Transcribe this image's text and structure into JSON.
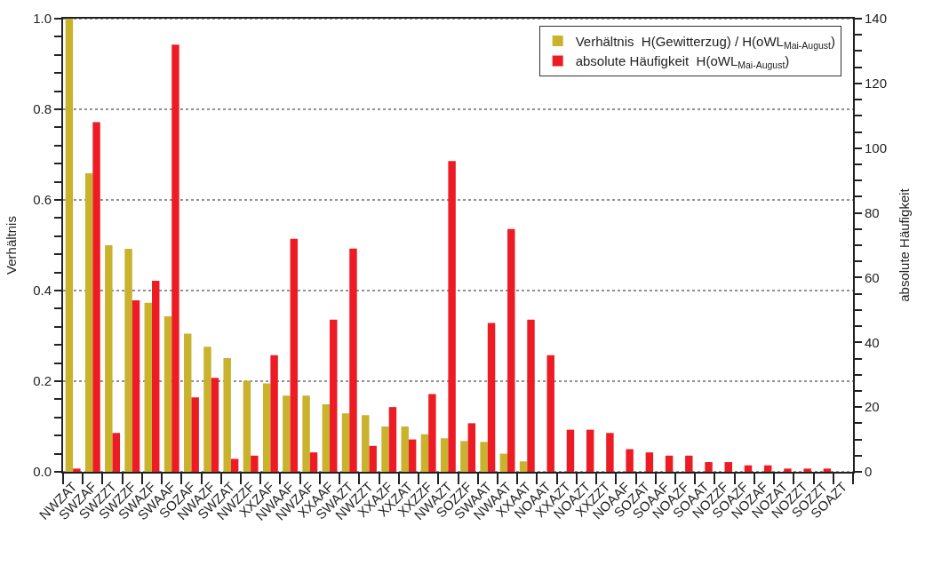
{
  "chart_data": {
    "type": "bar",
    "ylabel": "Verhältnis",
    "y2label": "absolute Häufigkeit",
    "categories": [
      "NWZAT",
      "SWZAF",
      "SWZZT",
      "SWZZF",
      "SWAZF",
      "SWAAF",
      "SOZAF",
      "NWAZF",
      "SWZAT",
      "NWZZF",
      "XXZAF",
      "NWAAF",
      "NWZAF",
      "XXAAF",
      "SWAZT",
      "NWZZT",
      "XXAZF",
      "XXZAT",
      "XXZZF",
      "NWAZT",
      "SOZZF",
      "SWAAT",
      "NWAAT",
      "XXAAT",
      "NOAAT",
      "XXAZT",
      "NOAZT",
      "XXZZT",
      "NOAAF",
      "SOZAT",
      "SOAAF",
      "NOAZF",
      "SOAAT",
      "NOZZF",
      "SOAZF",
      "NOZAF",
      "NOZAT",
      "NOZZT",
      "SOZZT",
      "SOAZT"
    ],
    "series": [
      {
        "name": "Verhältnis  H(Gewitterzug) / H(oWL$_{Mai-August}$)",
        "color": "#c8b22e",
        "values": [
          1.0,
          0.659,
          0.5,
          0.492,
          0.373,
          0.343,
          0.305,
          0.276,
          0.251,
          0.201,
          0.195,
          0.168,
          0.168,
          0.149,
          0.129,
          0.125,
          0.1,
          0.1,
          0.083,
          0.074,
          0.068,
          0.066,
          0.04,
          0.023,
          0,
          0,
          0,
          0,
          0,
          0,
          0,
          0,
          0,
          0,
          0,
          0,
          0,
          0,
          0,
          0
        ]
      },
      {
        "name": "absolute Häufigkeit  H(oWL$_{Mai-August}$)",
        "color": "#ed1c24",
        "axis": "y2",
        "values": [
          1,
          108,
          12,
          53,
          59,
          132,
          23,
          29,
          4,
          5,
          36,
          72,
          6,
          47,
          69,
          8,
          20,
          10,
          24,
          96,
          15,
          46,
          75,
          47,
          36,
          13,
          13,
          12,
          7,
          6,
          5,
          5,
          3,
          3,
          2,
          2,
          1,
          1,
          1,
          0
        ]
      }
    ],
    "ylim": [
      0,
      1
    ],
    "yticks": [
      {
        "value": 0,
        "label": "0.0"
      },
      {
        "value": 0.04,
        "label": null
      },
      {
        "value": 0.08,
        "label": null
      },
      {
        "value": 0.12,
        "label": null
      },
      {
        "value": 0.16,
        "label": null
      },
      0.2,
      {
        "value": 0.24,
        "label": null
      },
      {
        "value": 0.28,
        "label": null
      },
      {
        "value": 0.32,
        "label": null
      },
      {
        "value": 0.36,
        "label": null
      },
      0.4,
      {
        "value": 0.44,
        "label": null
      },
      {
        "value": 0.48,
        "label": null
      },
      {
        "value": 0.52,
        "label": null
      },
      {
        "value": 0.56,
        "label": null
      },
      0.6,
      {
        "value": 0.64,
        "label": null
      },
      {
        "value": 0.68,
        "label": null
      },
      {
        "value": 0.72,
        "label": null
      },
      {
        "value": 0.76,
        "label": null
      },
      0.8,
      {
        "value": 0.84,
        "label": null
      },
      {
        "value": 0.88,
        "label": null
      },
      {
        "value": 0.92,
        "label": null
      },
      {
        "value": 0.96,
        "label": null
      },
      {
        "value": 1,
        "label": "1.0"
      }
    ],
    "y2lim": [
      0,
      140
    ],
    "y2ticks": [
      0,
      {
        "value": 5,
        "label": null
      },
      {
        "value": 10,
        "label": null
      },
      {
        "value": 15,
        "label": null
      },
      20,
      {
        "value": 25,
        "label": null
      },
      {
        "value": 30,
        "label": null
      },
      {
        "value": 35,
        "label": null
      },
      40,
      {
        "value": 45,
        "label": null
      },
      {
        "value": 50,
        "label": null
      },
      {
        "value": 55,
        "label": null
      },
      60,
      {
        "value": 65,
        "label": null
      },
      {
        "value": 70,
        "label": null
      },
      {
        "value": 75,
        "label": null
      },
      80,
      {
        "value": 85,
        "label": null
      },
      {
        "value": 90,
        "label": null
      },
      {
        "value": 95,
        "label": null
      },
      100,
      {
        "value": 105,
        "label": null
      },
      {
        "value": 110,
        "label": null
      },
      {
        "value": 115,
        "label": null
      },
      120,
      {
        "value": 125,
        "label": null
      },
      {
        "value": 130,
        "label": null
      },
      {
        "value": 135,
        "label": null
      },
      140
    ],
    "grid": "y",
    "legend": "top right"
  }
}
